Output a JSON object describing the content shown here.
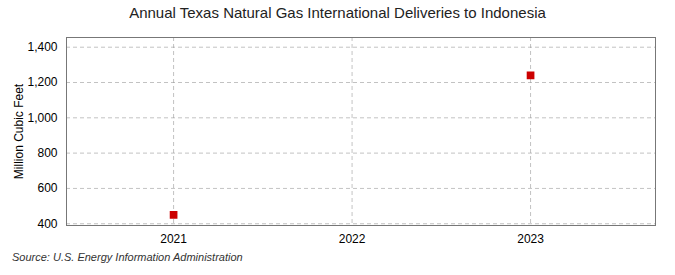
{
  "chart_data": {
    "type": "scatter",
    "title": "Annual Texas Natural Gas International Deliveries to Indonesia",
    "ylabel": "Million Cubic Feet",
    "source": "Source: U.S. Energy Information Administration",
    "x": [
      2021,
      2023
    ],
    "values": [
      450,
      1240
    ],
    "color": "#cc0000",
    "marker": "square",
    "xlim": [
      2020.4,
      2023.7
    ],
    "xticks": [
      2021,
      2022,
      2023
    ],
    "ylim": [
      390,
      1455
    ],
    "yticks": [
      400,
      600,
      800,
      {
        "value": 1000,
        "label": "1,000"
      },
      {
        "value": 1200,
        "label": "1,200"
      },
      {
        "value": 1400,
        "label": "1,400"
      }
    ],
    "grid": true
  }
}
